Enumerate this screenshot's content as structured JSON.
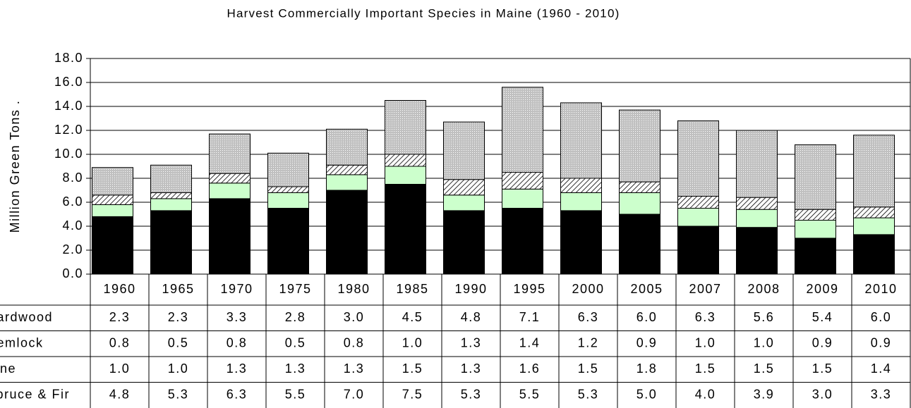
{
  "chart_data": {
    "type": "stacked-bar",
    "title": "Harvest Commercially Important Species in Maine (1960 - 2010)",
    "y_label": "Million Green Tons .",
    "categories": [
      "1960",
      "1965",
      "1970",
      "1975",
      "1980",
      "1985",
      "1990",
      "1995",
      "2000",
      "2005",
      "2007",
      "2008",
      "2009",
      "2010"
    ],
    "series": [
      {
        "name": "Hardwood",
        "color": "#c0c0c0",
        "pattern": "dots",
        "values": [
          2.3,
          2.3,
          3.3,
          2.8,
          3.0,
          4.5,
          4.8,
          7.1,
          6.3,
          6.0,
          6.3,
          5.6,
          5.4,
          6.0
        ],
        "value_labels": [
          "2.3",
          "2.3",
          "3.3",
          "2.8",
          "3.0",
          "4.5",
          "4.8",
          "7.1",
          "6.3",
          "6.0",
          "6.3",
          "5.6",
          "5.4",
          "6.0"
        ]
      },
      {
        "name": "Hemlock",
        "color": "#ffffff",
        "pattern": "hatch",
        "values": [
          0.8,
          0.5,
          0.8,
          0.5,
          0.8,
          1.0,
          1.3,
          1.4,
          1.2,
          0.9,
          1.0,
          1.0,
          0.9,
          0.9
        ],
        "value_labels": [
          "0.8",
          "0.5",
          "0.8",
          "0.5",
          "0.8",
          "1.0",
          "1.3",
          "1.4",
          "1.2",
          "0.9",
          "1.0",
          "1.0",
          "0.9",
          "0.9"
        ]
      },
      {
        "name": "Pine",
        "color": "#ccffcc",
        "values": [
          1.0,
          1.0,
          1.3,
          1.3,
          1.3,
          1.5,
          1.3,
          1.6,
          1.5,
          1.8,
          1.5,
          1.5,
          1.5,
          1.4
        ],
        "value_labels": [
          "1.0",
          "1.0",
          "1.3",
          "1.3",
          "1.3",
          "1.5",
          "1.3",
          "1.6",
          "1.5",
          "1.8",
          "1.5",
          "1.5",
          "1.5",
          "1.4"
        ]
      },
      {
        "name": "Spruce & Fir",
        "color": "#000000",
        "values": [
          4.8,
          5.3,
          6.3,
          5.5,
          7.0,
          7.5,
          5.3,
          5.5,
          5.3,
          5.0,
          4.0,
          3.9,
          3.0,
          3.3
        ],
        "value_labels": [
          "4.8",
          "5.3",
          "6.3",
          "5.5",
          "7.0",
          "7.5",
          "5.3",
          "5.5",
          "5.3",
          "5.0",
          "4.0",
          "3.9",
          "3.0",
          "3.3"
        ]
      }
    ],
    "ylim": [
      0,
      18
    ],
    "yticks": [
      {
        "value": 0,
        "label": "0.0"
      },
      {
        "value": 2,
        "label": "2.0"
      },
      {
        "value": 4,
        "label": "4.0"
      },
      {
        "value": 6,
        "label": "6.0"
      },
      {
        "value": 8,
        "label": "8.0"
      },
      {
        "value": 10,
        "label": "10.0"
      },
      {
        "value": 12,
        "label": "12.0"
      },
      {
        "value": 14,
        "label": "14.0"
      },
      {
        "value": 16,
        "label": "16.0"
      },
      {
        "value": 18,
        "label": "18.0"
      }
    ],
    "grid": true
  }
}
